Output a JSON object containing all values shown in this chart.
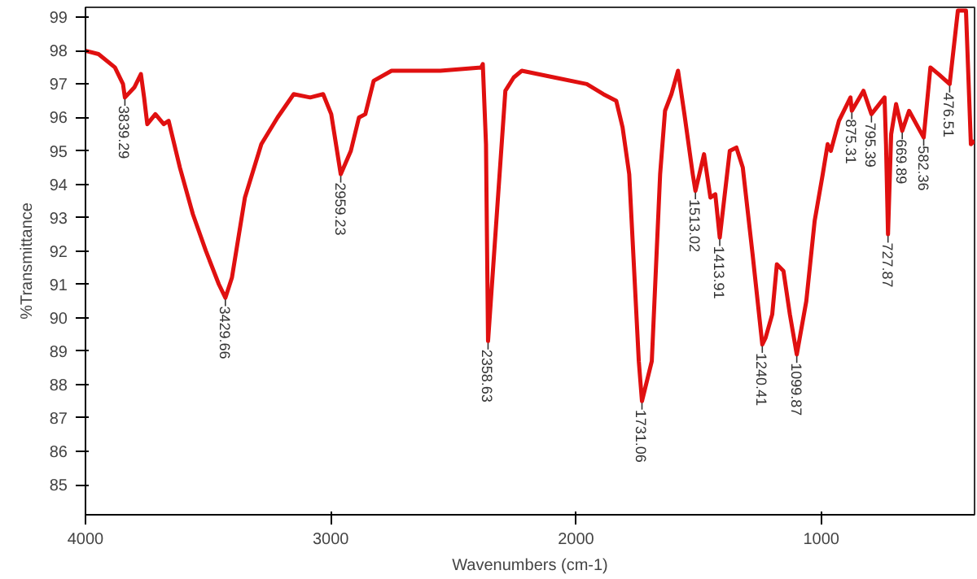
{
  "chart_data": {
    "type": "line",
    "xlabel": "Wavenumbers (cm-1)",
    "ylabel": "%Transmittance",
    "xlim": [
      4000,
      375
    ],
    "ylim": [
      84.1,
      99.3
    ],
    "xticks": [
      4000,
      3000,
      2000,
      1000
    ],
    "yticks": [
      85,
      86,
      87,
      88,
      89,
      90,
      91,
      92,
      93,
      94,
      95,
      96,
      97,
      98,
      99
    ],
    "grid": false,
    "marker": "none",
    "line_style": "solid",
    "series": [
      {
        "color": "#e01010",
        "x": [
          4000,
          3947,
          3880,
          3847,
          3839.29,
          3801,
          3774,
          3761,
          3748,
          3715,
          3681,
          3661,
          3615,
          3562,
          3509,
          3456,
          3429.66,
          3403,
          3350,
          3283,
          3217,
          3151,
          3084,
          3031,
          2998,
          2959.23,
          2918,
          2885,
          2859,
          2825,
          2752,
          2553,
          2387,
          2380,
          2367,
          2358.63,
          2321,
          2288,
          2254,
          2221,
          2088,
          1956,
          1889,
          1836,
          1810,
          1783,
          1744,
          1731.06,
          1691,
          1657,
          1637,
          1611,
          1584,
          1558,
          1524,
          1513.02,
          1478,
          1452,
          1432,
          1413.91,
          1373,
          1346,
          1320,
          1280,
          1240.41,
          1227,
          1200,
          1181,
          1154,
          1128,
          1099.87,
          1061,
          1027,
          994,
          974,
          961,
          928,
          881,
          875.31,
          828,
          795.39,
          742,
          736,
          727.87,
          715,
          695,
          669.89,
          642,
          582.36,
          555,
          522,
          476.51,
          443,
          410,
          390,
          375
        ],
        "values": [
          98.0,
          97.9,
          97.5,
          97.0,
          96.6,
          96.9,
          97.3,
          96.6,
          95.8,
          96.1,
          95.8,
          95.9,
          94.5,
          93.1,
          92.0,
          91.0,
          90.6,
          91.2,
          93.6,
          95.2,
          96.0,
          96.7,
          96.6,
          96.7,
          96.1,
          94.3,
          95.0,
          96.0,
          96.1,
          97.1,
          97.4,
          97.4,
          97.5,
          97.6,
          95.2,
          89.3,
          93.3,
          96.8,
          97.2,
          97.4,
          97.2,
          97.0,
          96.7,
          96.5,
          95.7,
          94.3,
          88.7,
          87.5,
          88.7,
          94.3,
          96.2,
          96.7,
          97.4,
          96.1,
          94.3,
          93.8,
          94.9,
          93.6,
          93.7,
          92.4,
          95.0,
          95.1,
          94.5,
          91.9,
          89.2,
          89.4,
          90.1,
          91.6,
          91.4,
          90.1,
          88.9,
          90.5,
          92.9,
          94.3,
          95.2,
          95.0,
          95.9,
          96.6,
          96.2,
          96.8,
          96.1,
          96.6,
          95.2,
          92.5,
          95.5,
          96.4,
          95.6,
          96.2,
          95.4,
          97.5,
          97.3,
          97.0,
          99.2,
          99.2,
          95.2,
          95.3
        ]
      }
    ],
    "annotations": [
      {
        "text": "3839.29",
        "x": 3839.29,
        "y": 96.6
      },
      {
        "text": "3429.66",
        "x": 3429.66,
        "y": 90.6
      },
      {
        "text": "2959.23",
        "x": 2959.23,
        "y": 94.3
      },
      {
        "text": "2358.63",
        "x": 2358.63,
        "y": 89.3
      },
      {
        "text": "1731.06",
        "x": 1731.06,
        "y": 87.5
      },
      {
        "text": "1513.02",
        "x": 1513.02,
        "y": 93.8
      },
      {
        "text": "1413.91",
        "x": 1413.91,
        "y": 92.4
      },
      {
        "text": "1240.41",
        "x": 1240.41,
        "y": 89.2
      },
      {
        "text": "1099.87",
        "x": 1099.87,
        "y": 88.9
      },
      {
        "text": "875.31",
        "x": 875.31,
        "y": 96.2
      },
      {
        "text": "795.39",
        "x": 795.39,
        "y": 96.1
      },
      {
        "text": "727.87",
        "x": 727.87,
        "y": 92.5
      },
      {
        "text": "669.89",
        "x": 669.89,
        "y": 95.6
      },
      {
        "text": "582.36",
        "x": 582.36,
        "y": 95.4
      },
      {
        "text": "476.51",
        "x": 476.51,
        "y": 97.0
      }
    ]
  }
}
